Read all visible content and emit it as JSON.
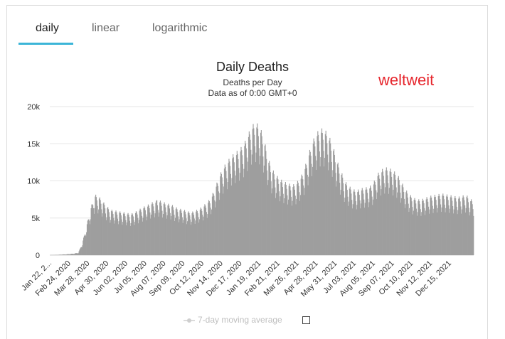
{
  "tabs": [
    {
      "label": "daily"
    },
    {
      "label": "linear"
    },
    {
      "label": "logarithmic"
    }
  ],
  "overlay_label": "weltweit",
  "legend": {
    "label": "7-day moving average",
    "checkbox_checked": false
  },
  "colors": {
    "bar": "#9e9e9e",
    "accent": "#3cb5d8",
    "overlay": "#e6262d",
    "grid": "#e6e6e6"
  },
  "chart_data": {
    "type": "bar",
    "title": "Daily Deaths",
    "subtitle": "Deaths per Day",
    "subtitle2": "Data as of 0:00 GMT+0",
    "ylabel": "",
    "xlabel": "",
    "ylim": [
      0,
      20000
    ],
    "yticks": [
      "0",
      "5k",
      "10k",
      "15k",
      "20k"
    ],
    "ytick_values": [
      0,
      5000,
      10000,
      15000,
      20000
    ],
    "x_start": "Jan 22, 2020",
    "x_end": "Jan 2022",
    "xticks": [
      "Jan 22, 2...",
      "Feb 24, 2020",
      "Mar 28, 2020",
      "Apr 30, 2020",
      "Jun 02, 2020",
      "Jul 05, 2020",
      "Aug 07, 2020",
      "Sep 09, 2020",
      "Oct 12, 2020",
      "Nov 14, 2020",
      "Dec 17, 2020",
      "Jan 19, 2021",
      "Feb 21, 2021",
      "Mar 26, 2021",
      "Apr 28, 2021",
      "May 31, 2021",
      "Jul 03, 2021",
      "Aug 05, 2021",
      "Sep 07, 2021",
      "Oct 10, 2021",
      "Nov 12, 2021",
      "Dec 15, 2021"
    ],
    "series": [
      {
        "name": "Daily Deaths",
        "weekly_values": [
          10,
          20,
          40,
          80,
          100,
          150,
          200,
          300,
          1500,
          3500,
          5500,
          7200,
          7000,
          6400,
          5800,
          5400,
          5300,
          5200,
          5100,
          5000,
          4900,
          5100,
          5400,
          5700,
          5900,
          6200,
          6400,
          6500,
          6300,
          6100,
          6000,
          5700,
          5500,
          5400,
          5200,
          5100,
          5300,
          5500,
          5900,
          6300,
          7000,
          8200,
          9500,
          10500,
          11200,
          11800,
          12200,
          12600,
          13200,
          14300,
          15400,
          15700,
          15200,
          13700,
          11500,
          10200,
          9500,
          9000,
          8700,
          8500,
          8300,
          8600,
          9200,
          10300,
          12000,
          13500,
          14500,
          15000,
          14900,
          14200,
          13000,
          11300,
          10000,
          8800,
          8200,
          7800,
          7700,
          7900,
          8000,
          8100,
          8500,
          9600,
          10100,
          10400,
          10300,
          10000,
          9600,
          8700,
          7800,
          7200,
          6800,
          6600,
          6600,
          6800,
          7000,
          7100,
          7200,
          7300,
          7200,
          7100,
          7000,
          6900,
          7000,
          7200,
          6600
        ]
      }
    ]
  }
}
